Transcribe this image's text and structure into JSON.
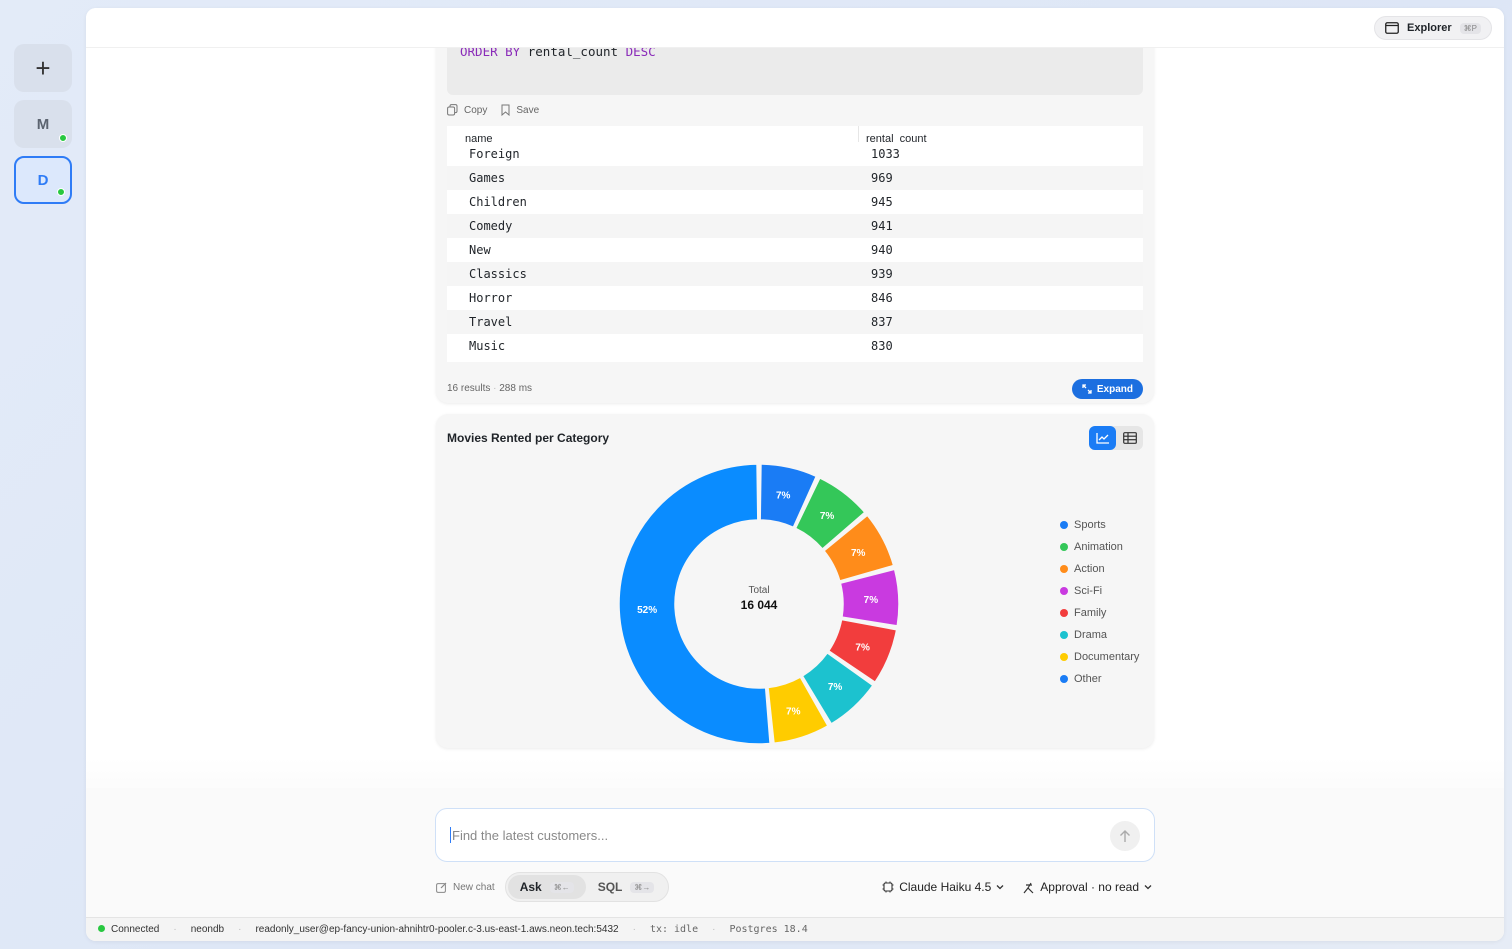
{
  "rail": {
    "new_label": "+",
    "items": [
      {
        "label": "M"
      },
      {
        "label": "D"
      }
    ]
  },
  "topbar": {
    "explorer_label": "Explorer",
    "explorer_shortcut": "⌘P"
  },
  "query": {
    "sql_line": [
      "ORDER BY",
      "rental_count",
      "DESC"
    ],
    "copy_label": "Copy",
    "save_label": "Save",
    "columns": [
      "name",
      "rental_count"
    ],
    "rows": [
      {
        "name": "Foreign",
        "count": "1033"
      },
      {
        "name": "Games",
        "count": "969"
      },
      {
        "name": "Children",
        "count": "945"
      },
      {
        "name": "Comedy",
        "count": "941"
      },
      {
        "name": "New",
        "count": "940"
      },
      {
        "name": "Classics",
        "count": "939"
      },
      {
        "name": "Horror",
        "count": "846"
      },
      {
        "name": "Travel",
        "count": "837"
      },
      {
        "name": "Music",
        "count": "830"
      }
    ],
    "results_label": "16 results",
    "time_label": "288 ms",
    "expand_label": "Expand"
  },
  "chart": {
    "title": "Movies Rented per Category",
    "center_label": "Total",
    "center_value": "16 044",
    "legend": [
      {
        "name": "Sports",
        "color": "#1a7cf5"
      },
      {
        "name": "Animation",
        "color": "#34c759"
      },
      {
        "name": "Action",
        "color": "#ff8c1a"
      },
      {
        "name": "Sci-Fi",
        "color": "#c93ae0"
      },
      {
        "name": "Family",
        "color": "#f23d3d"
      },
      {
        "name": "Drama",
        "color": "#1cc2cf"
      },
      {
        "name": "Documentary",
        "color": "#ffcc00"
      },
      {
        "name": "Other",
        "color": "#1a7cf5"
      }
    ]
  },
  "chart_data": {
    "type": "pie",
    "title": "Movies Rented per Category",
    "categories": [
      "Sports",
      "Animation",
      "Action",
      "Sci-Fi",
      "Family",
      "Drama",
      "Documentary",
      "Other"
    ],
    "values": [
      7,
      7,
      7,
      7,
      7,
      7,
      7,
      52
    ],
    "labels": [
      "7%",
      "7%",
      "7%",
      "7%",
      "7%",
      "7%",
      "7%",
      "52%"
    ],
    "colors": [
      "#1a7cf5",
      "#34c759",
      "#ff8c1a",
      "#c93ae0",
      "#f23d3d",
      "#1cc2cf",
      "#ffcc00",
      "#0a8cff"
    ],
    "total": "16 044",
    "legend_position": "right"
  },
  "chat": {
    "placeholder": "Find the latest customers...",
    "new_chat_label": "New chat",
    "modes": [
      {
        "label": "Ask",
        "shortcut": "⌘←"
      },
      {
        "label": "SQL",
        "shortcut": "⌘→"
      }
    ],
    "model_label": "Claude Haiku 4.5",
    "approval_label": "Approval · no read"
  },
  "status": {
    "connected": "Connected",
    "database": "neondb",
    "connection": "readonly_user@ep-fancy-union-ahnihtr0-pooler.c-3.us-east-1.aws.neon.tech:5432",
    "tx": "tx: idle",
    "version": "Postgres 18.4"
  }
}
